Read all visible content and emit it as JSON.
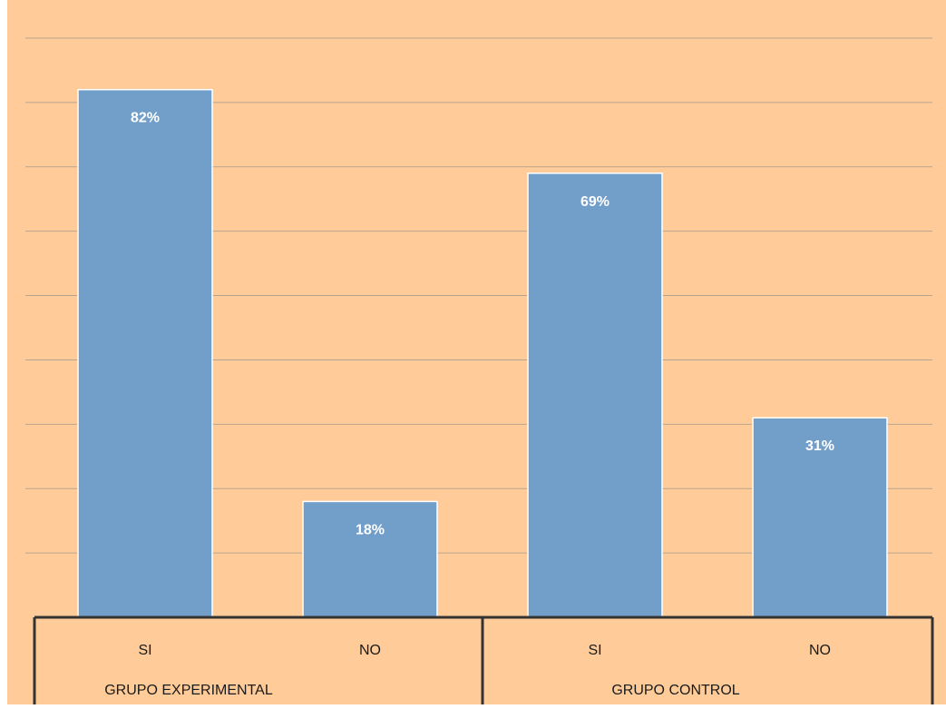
{
  "chart_data": {
    "type": "bar",
    "title": "",
    "xlabel": "",
    "ylabel": "",
    "ylim": [
      0,
      90
    ],
    "grid": true,
    "groups": [
      {
        "label": "GRUPO EXPERIMENTAL",
        "categories": [
          "SI",
          "NO"
        ]
      },
      {
        "label": "GRUPO CONTROL",
        "categories": [
          "SI",
          "NO"
        ]
      }
    ],
    "categories": [
      "SI",
      "NO",
      "SI",
      "NO"
    ],
    "values": [
      82,
      18,
      69,
      31
    ],
    "data_labels": [
      "82%",
      "18%",
      "69%",
      "31%"
    ]
  },
  "colors": {
    "background": "#FFCC99",
    "bar": "#729FCA",
    "bar_border": "#FFFFFF",
    "gridline": "#B7A48E",
    "data_label": "#FFFFFF",
    "axis_line": "#333333",
    "axis_text": "#1A1A1A"
  }
}
